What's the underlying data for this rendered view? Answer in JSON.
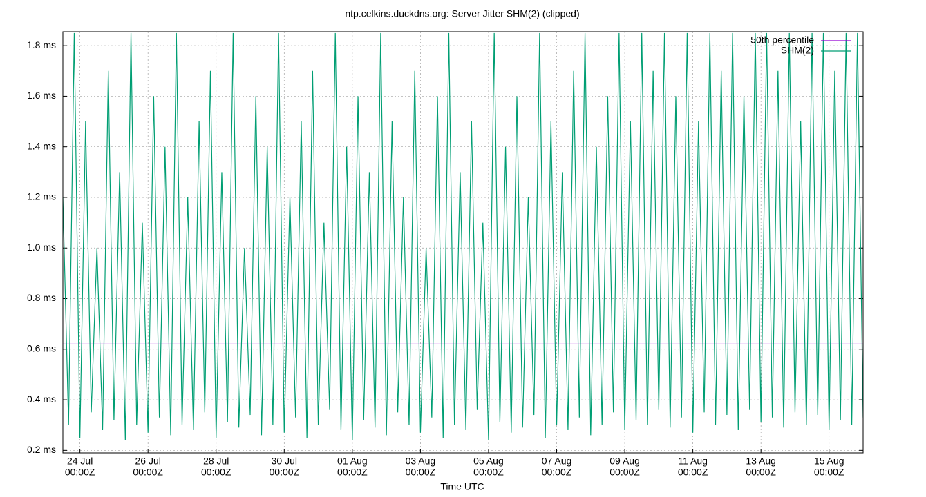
{
  "chart_data": {
    "type": "line",
    "title": "ntp.celkins.duckdns.org: Server Jitter SHM(2) (clipped)",
    "x_label": "Time UTC",
    "xlim": [
      "23 Jul 12:00Z",
      "16 Aug 00:00Z"
    ],
    "xticks": [
      {
        "date": "24 Jul",
        "time": "00:00Z"
      },
      {
        "date": "26 Jul",
        "time": "00:00Z"
      },
      {
        "date": "28 Jul",
        "time": "00:00Z"
      },
      {
        "date": "30 Jul",
        "time": "00:00Z"
      },
      {
        "date": "01 Aug",
        "time": "00:00Z"
      },
      {
        "date": "03 Aug",
        "time": "00:00Z"
      },
      {
        "date": "05 Aug",
        "time": "00:00Z"
      },
      {
        "date": "07 Aug",
        "time": "00:00Z"
      },
      {
        "date": "09 Aug",
        "time": "00:00Z"
      },
      {
        "date": "11 Aug",
        "time": "00:00Z"
      },
      {
        "date": "13 Aug",
        "time": "00:00Z"
      },
      {
        "date": "15 Aug",
        "time": "00:00Z"
      }
    ],
    "ylim": [
      0.19,
      1.855
    ],
    "yticks": [
      {
        "value": 0.2,
        "label": "0.2 ms"
      },
      {
        "value": 0.4,
        "label": "0.4 ms"
      },
      {
        "value": 0.6,
        "label": "0.6 ms"
      },
      {
        "value": 0.8,
        "label": "0.8 ms"
      },
      {
        "value": 1.0,
        "label": "1.0 ms"
      },
      {
        "value": 1.2,
        "label": "1.2 ms"
      },
      {
        "value": 1.4,
        "label": "1.4 ms"
      },
      {
        "value": 1.6,
        "label": "1.6 ms"
      },
      {
        "value": 1.8,
        "label": "1.8 ms"
      }
    ],
    "grid": true,
    "legend": "top-right",
    "series": [
      {
        "name": "50th percentile",
        "color": "#9400d3",
        "x": [
          "23 Jul 12:00Z",
          "16 Aug 00:00Z"
        ],
        "values": [
          0.62,
          0.62
        ]
      },
      {
        "name": "SHM(2)",
        "color": "#009e73",
        "x": [
          "23 Jul 12:00Z",
          "23 Jul 16:00Z",
          "23 Jul 20:00Z",
          "24 Jul 00:00Z",
          "24 Jul 04:00Z",
          "24 Jul 08:00Z",
          "24 Jul 12:00Z",
          "24 Jul 16:00Z",
          "24 Jul 20:00Z",
          "25 Jul 00:00Z",
          "25 Jul 04:00Z",
          "25 Jul 08:00Z",
          "25 Jul 12:00Z",
          "25 Jul 16:00Z",
          "25 Jul 20:00Z",
          "26 Jul 00:00Z",
          "26 Jul 04:00Z",
          "26 Jul 08:00Z",
          "26 Jul 12:00Z",
          "26 Jul 16:00Z",
          "26 Jul 20:00Z",
          "27 Jul 00:00Z",
          "27 Jul 04:00Z",
          "27 Jul 08:00Z",
          "27 Jul 12:00Z",
          "27 Jul 16:00Z",
          "27 Jul 20:00Z",
          "28 Jul 00:00Z",
          "28 Jul 04:00Z",
          "28 Jul 08:00Z",
          "28 Jul 12:00Z",
          "28 Jul 16:00Z",
          "28 Jul 20:00Z",
          "29 Jul 00:00Z",
          "29 Jul 04:00Z",
          "29 Jul 08:00Z",
          "29 Jul 12:00Z",
          "29 Jul 16:00Z",
          "29 Jul 20:00Z",
          "30 Jul 00:00Z",
          "30 Jul 04:00Z",
          "30 Jul 08:00Z",
          "30 Jul 12:00Z",
          "30 Jul 16:00Z",
          "30 Jul 20:00Z",
          "31 Jul 00:00Z",
          "31 Jul 04:00Z",
          "31 Jul 08:00Z",
          "31 Jul 12:00Z",
          "31 Jul 16:00Z",
          "31 Jul 20:00Z",
          "01 Aug 00:00Z",
          "01 Aug 04:00Z",
          "01 Aug 08:00Z",
          "01 Aug 12:00Z",
          "01 Aug 16:00Z",
          "01 Aug 20:00Z",
          "02 Aug 00:00Z",
          "02 Aug 04:00Z",
          "02 Aug 08:00Z",
          "02 Aug 12:00Z",
          "02 Aug 16:00Z",
          "02 Aug 20:00Z",
          "03 Aug 00:00Z",
          "03 Aug 04:00Z",
          "03 Aug 08:00Z",
          "03 Aug 12:00Z",
          "03 Aug 16:00Z",
          "03 Aug 20:00Z",
          "04 Aug 00:00Z",
          "04 Aug 04:00Z",
          "04 Aug 08:00Z",
          "04 Aug 12:00Z",
          "04 Aug 16:00Z",
          "04 Aug 20:00Z",
          "05 Aug 00:00Z",
          "05 Aug 04:00Z",
          "05 Aug 08:00Z",
          "05 Aug 12:00Z",
          "05 Aug 16:00Z",
          "05 Aug 20:00Z",
          "06 Aug 00:00Z",
          "06 Aug 04:00Z",
          "06 Aug 08:00Z",
          "06 Aug 12:00Z",
          "06 Aug 16:00Z",
          "06 Aug 20:00Z",
          "07 Aug 00:00Z",
          "07 Aug 04:00Z",
          "07 Aug 08:00Z",
          "07 Aug 12:00Z",
          "07 Aug 16:00Z",
          "07 Aug 20:00Z",
          "08 Aug 00:00Z",
          "08 Aug 04:00Z",
          "08 Aug 08:00Z",
          "08 Aug 12:00Z",
          "08 Aug 16:00Z",
          "08 Aug 20:00Z",
          "09 Aug 00:00Z",
          "09 Aug 04:00Z",
          "09 Aug 08:00Z",
          "09 Aug 12:00Z",
          "09 Aug 16:00Z",
          "09 Aug 20:00Z",
          "10 Aug 00:00Z",
          "10 Aug 04:00Z",
          "10 Aug 08:00Z",
          "10 Aug 12:00Z",
          "10 Aug 16:00Z",
          "10 Aug 20:00Z",
          "11 Aug 00:00Z",
          "11 Aug 04:00Z",
          "11 Aug 08:00Z",
          "11 Aug 12:00Z",
          "11 Aug 16:00Z",
          "11 Aug 20:00Z",
          "12 Aug 00:00Z",
          "12 Aug 04:00Z",
          "12 Aug 08:00Z",
          "12 Aug 12:00Z",
          "12 Aug 16:00Z",
          "12 Aug 20:00Z",
          "13 Aug 00:00Z",
          "13 Aug 04:00Z",
          "13 Aug 08:00Z",
          "13 Aug 12:00Z",
          "13 Aug 16:00Z",
          "13 Aug 20:00Z",
          "14 Aug 00:00Z",
          "14 Aug 04:00Z",
          "14 Aug 08:00Z",
          "14 Aug 12:00Z",
          "14 Aug 16:00Z",
          "14 Aug 20:00Z",
          "15 Aug 00:00Z",
          "15 Aug 04:00Z",
          "15 Aug 08:00Z",
          "15 Aug 12:00Z",
          "15 Aug 16:00Z",
          "15 Aug 20:00Z",
          "16 Aug 00:00Z"
        ],
        "values": [
          1.2,
          0.3,
          1.85,
          0.25,
          1.5,
          0.35,
          1.0,
          0.28,
          1.7,
          0.32,
          1.3,
          0.24,
          1.85,
          0.3,
          1.1,
          0.27,
          1.6,
          0.33,
          1.4,
          0.26,
          1.85,
          0.3,
          1.2,
          0.28,
          1.5,
          0.35,
          1.7,
          0.25,
          1.3,
          0.31,
          1.85,
          0.29,
          1.0,
          0.34,
          1.6,
          0.26,
          1.4,
          0.3,
          1.85,
          0.27,
          1.2,
          0.33,
          1.5,
          0.25,
          1.7,
          0.3,
          1.1,
          0.36,
          1.85,
          0.28,
          1.4,
          0.24,
          1.6,
          0.32,
          1.3,
          0.29,
          1.85,
          0.26,
          1.5,
          0.35,
          1.2,
          0.3,
          1.7,
          0.27,
          1.0,
          0.33,
          1.6,
          0.25,
          1.85,
          0.3,
          1.3,
          0.28,
          1.5,
          0.36,
          1.1,
          0.24,
          1.85,
          0.31,
          1.4,
          0.27,
          1.6,
          0.29,
          1.2,
          0.34,
          1.85,
          0.25,
          1.5,
          0.3,
          1.3,
          0.28,
          1.7,
          0.33,
          1.85,
          0.26,
          1.4,
          0.3,
          1.6,
          0.35,
          1.85,
          0.28,
          1.5,
          0.32,
          1.85,
          0.3,
          1.7,
          0.36,
          1.85,
          0.29,
          1.6,
          0.33,
          1.85,
          0.27,
          1.5,
          0.35,
          1.85,
          0.3,
          1.7,
          0.34,
          1.85,
          0.28,
          1.6,
          0.36,
          1.85,
          0.31,
          1.85,
          0.33,
          1.7,
          0.29,
          1.85,
          0.35,
          1.5,
          0.3,
          1.85,
          0.34,
          1.85,
          0.28,
          1.7,
          0.32,
          1.85,
          0.3,
          1.85,
          0.33
        ]
      }
    ]
  }
}
